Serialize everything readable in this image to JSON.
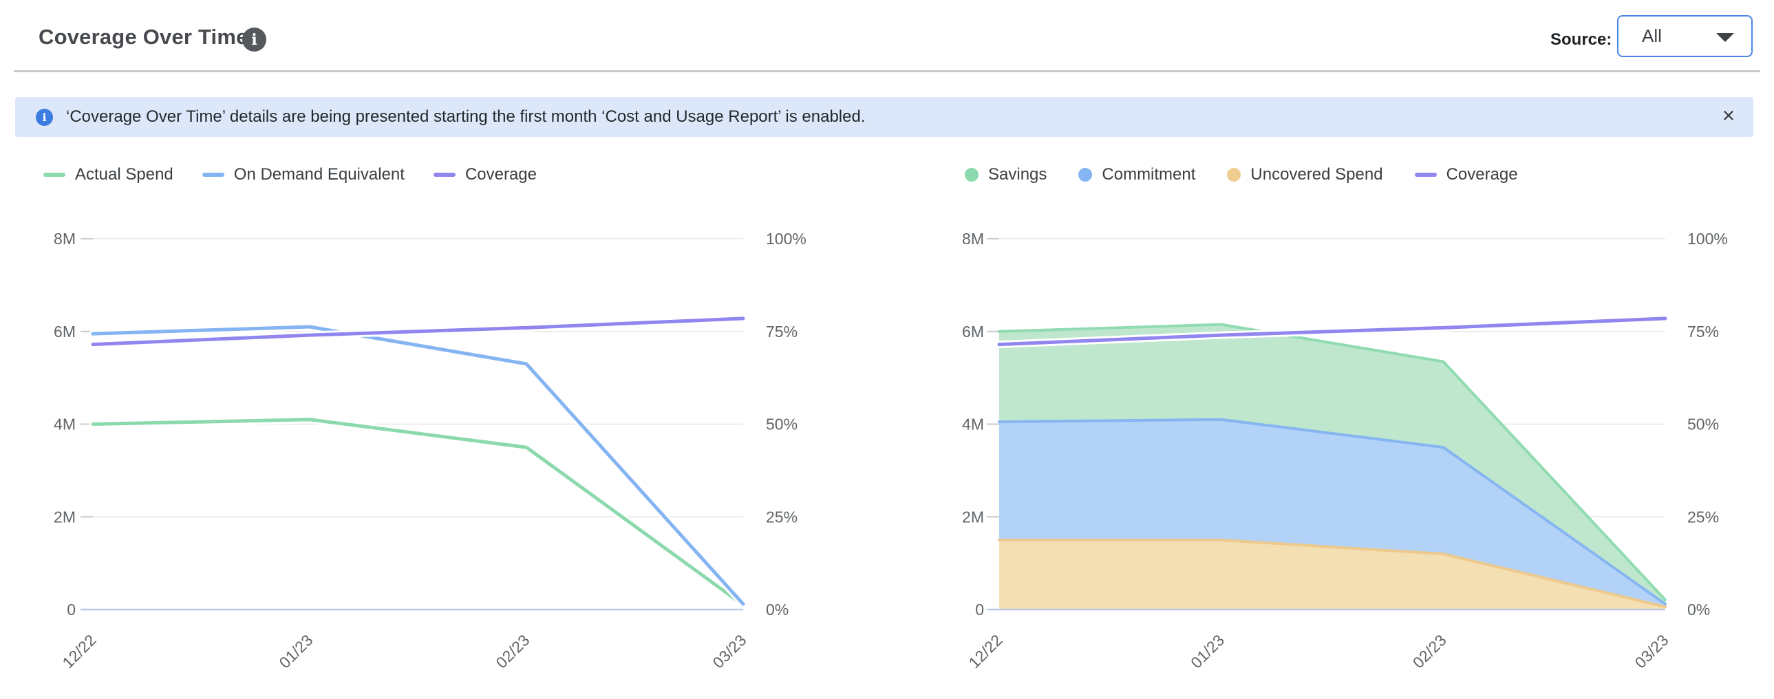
{
  "header": {
    "title": "Coverage Over Time",
    "info_icon": "i",
    "source_label": "Source:",
    "source_value": "All"
  },
  "banner": {
    "icon": "i",
    "text": "‘Coverage Over Time’ details are being presented starting the first month ‘Cost and Usage Report’ is enabled.",
    "close_glyph": "✕"
  },
  "colors": {
    "green": "#8cd9ad",
    "blue": "#84b4f1",
    "purple": "#9185ef",
    "orange": "#efcd90",
    "green_fill": "#b8e5ca",
    "blue_fill": "#abcef6",
    "orange_fill": "#f3dcad",
    "green_edge": "#90dbb1",
    "blue_edge": "#86b5f2",
    "orange_edge": "#edc98d",
    "banner_bg": "#dce8fa",
    "banner_icon": "#3b7de0",
    "dropdown_border": "#4a86e8",
    "gridline": "#e7e7e7",
    "tick": "#c9c9c9",
    "baseline": "#bdc7e6",
    "axis_text": "#5f6468"
  },
  "chart_data": [
    {
      "id": "actual-vs-ondemand-chart",
      "type": "line",
      "x": [
        "12/22",
        "01/23",
        "02/23",
        "03/23"
      ],
      "y_left": {
        "unit": "M",
        "max": 8,
        "ticks": [
          0,
          2,
          4,
          6,
          8
        ],
        "tick_labels": [
          "0",
          "2M",
          "4M",
          "6M",
          "8M"
        ]
      },
      "y_right": {
        "unit": "%",
        "max": 100,
        "ticks": [
          0,
          25,
          50,
          75,
          100
        ],
        "tick_labels": [
          "0%",
          "25%",
          "50%",
          "75%",
          "100%"
        ]
      },
      "grid": true,
      "legend": [
        {
          "name": "Actual Spend",
          "marker": "line",
          "color": "#8cd9ad"
        },
        {
          "name": "On Demand Equivalent",
          "marker": "line",
          "color": "#84b4f1"
        },
        {
          "name": "Coverage",
          "marker": "line",
          "color": "#9185ef"
        }
      ],
      "series": [
        {
          "name": "Actual Spend",
          "type": "line",
          "axis": "left",
          "color": "#8cd9ad",
          "values_millions": [
            4.0,
            4.1,
            3.5,
            0.1
          ]
        },
        {
          "name": "On Demand Equivalent",
          "type": "line",
          "axis": "left",
          "color": "#84b4f1",
          "values_millions": [
            5.95,
            6.1,
            5.3,
            0.12
          ]
        },
        {
          "name": "Coverage",
          "type": "line",
          "axis": "right",
          "color": "#9185ef",
          "values_percent": [
            71.5,
            74,
            76,
            78.5
          ]
        }
      ]
    },
    {
      "id": "savings-breakdown-chart",
      "type": "stacked_area",
      "x": [
        "12/22",
        "01/23",
        "02/23",
        "03/23"
      ],
      "y_left": {
        "unit": "M",
        "max": 8,
        "ticks": [
          0,
          2,
          4,
          6,
          8
        ],
        "tick_labels": [
          "0",
          "2M",
          "4M",
          "6M",
          "8M"
        ]
      },
      "y_right": {
        "unit": "%",
        "max": 100,
        "ticks": [
          0,
          25,
          50,
          75,
          100
        ],
        "tick_labels": [
          "0%",
          "25%",
          "50%",
          "75%",
          "100%"
        ]
      },
      "grid": true,
      "legend": [
        {
          "name": "Savings",
          "marker": "circle",
          "color": "#8cd9ad"
        },
        {
          "name": "Commitment",
          "marker": "circle",
          "color": "#84b4f1"
        },
        {
          "name": "Uncovered Spend",
          "marker": "circle",
          "color": "#efcd90"
        },
        {
          "name": "Coverage",
          "marker": "line",
          "color": "#9185ef"
        }
      ],
      "series": [
        {
          "name": "Uncovered Spend",
          "type": "area",
          "stack_order": 0,
          "fill": "#f3dcad",
          "edge": "#edc98d",
          "values_millions": [
            1.5,
            1.5,
            1.2,
            0.06
          ]
        },
        {
          "name": "Commitment",
          "type": "area",
          "stack_order": 1,
          "fill": "#abcef6",
          "edge": "#86b5f2",
          "values_millions": [
            2.55,
            2.6,
            2.3,
            0.06
          ]
        },
        {
          "name": "Savings",
          "type": "area",
          "stack_order": 2,
          "fill": "#b8e5ca",
          "edge": "#90dbb1",
          "values_millions": [
            1.95,
            2.05,
            1.85,
            0.09
          ]
        },
        {
          "name": "Coverage",
          "type": "line",
          "axis": "right",
          "color": "#9185ef",
          "values_percent": [
            71.5,
            74,
            76,
            78.5
          ]
        }
      ]
    }
  ]
}
